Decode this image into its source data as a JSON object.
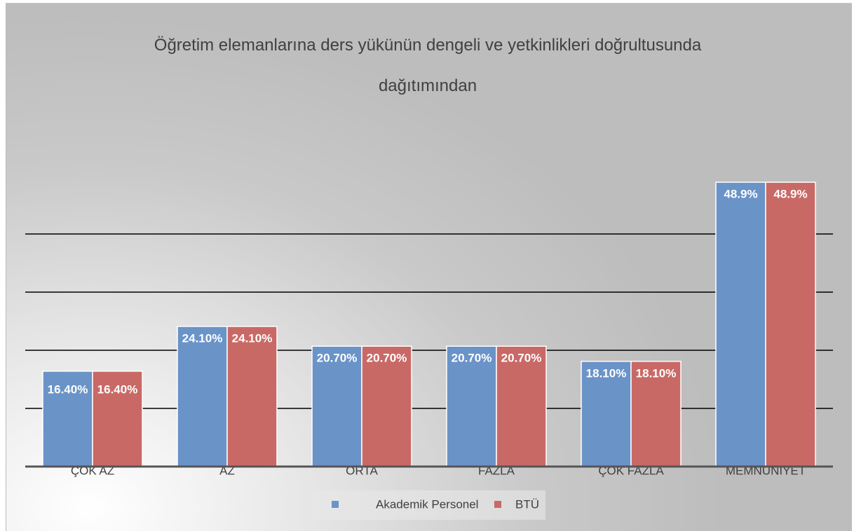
{
  "chart_data": {
    "type": "bar",
    "title": "Öğretim elemanlarına ders yükünün dengeli ve yetkinlikleri doğrultusunda dağıtımından",
    "categories": [
      "ÇOK AZ",
      "AZ",
      "ORTA",
      "FAZLA",
      "ÇOK FAZLA",
      "MEMNUNİYET"
    ],
    "series": [
      {
        "name": "Akademik Personel",
        "color": "#6a93c8",
        "values": [
          16.4,
          24.1,
          20.7,
          20.7,
          18.1,
          48.9
        ],
        "value_labels": [
          "16.40%",
          "24.10%",
          "20.70%",
          "20.70%",
          "18.10%",
          "48.9%"
        ]
      },
      {
        "name": "BTÜ",
        "color": "#c96966",
        "values": [
          16.4,
          24.1,
          20.7,
          20.7,
          18.1,
          48.9
        ],
        "value_labels": [
          "16.40%",
          "24.10%",
          "20.70%",
          "20.70%",
          "18.10%",
          "48.9%"
        ]
      }
    ],
    "ylim": [
      0,
      50
    ],
    "yticks": [
      10,
      20,
      30,
      40
    ],
    "grid": true,
    "legend": "bottom"
  }
}
